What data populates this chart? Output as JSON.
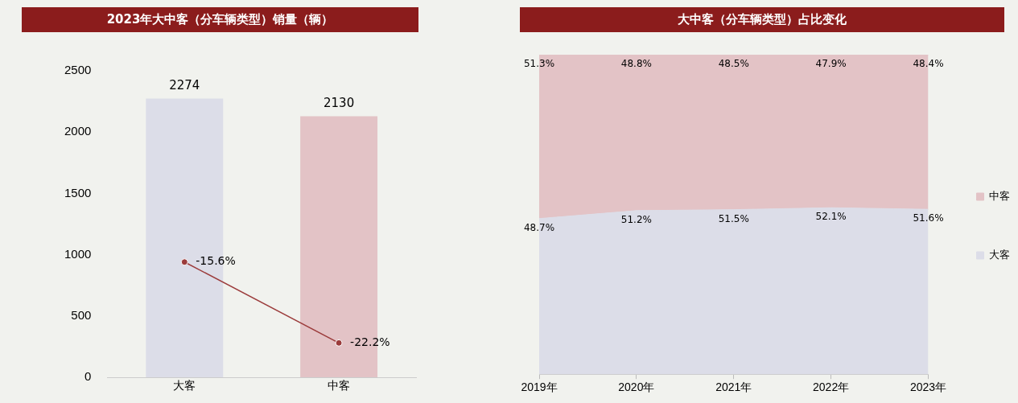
{
  "chart_data": [
    {
      "type": "bar",
      "title": "2023年大中客（分车辆类型）销量（辆）",
      "categories": [
        "大客",
        "中客"
      ],
      "series": [
        {
          "values": [
            2274,
            2130
          ],
          "colors": [
            "#dcdde8",
            "#e3c3c6"
          ],
          "value_labels": [
            "2274",
            "2130"
          ]
        },
        {
          "type": "line",
          "axis": "y2",
          "color": "#9b3b3b",
          "marker": "circle",
          "line_style": "solid",
          "values": [
            -15.6,
            -22.2
          ],
          "value_labels": [
            "-15.6%",
            "-22.2%"
          ]
        }
      ],
      "ylim": [
        0,
        2500
      ],
      "yticks": [
        0,
        500,
        1000,
        1500,
        2000,
        2500
      ],
      "y2lim": [
        -25,
        0
      ],
      "grid": false
    },
    {
      "type": "area",
      "title": "大中客（分车辆类型）占比变化",
      "categories": [
        "2019年",
        "2020年",
        "2021年",
        "2022年",
        "2023年"
      ],
      "stacked": true,
      "series": [
        {
          "name": "大客",
          "color": "#dcdde8",
          "values": [
            48.7,
            51.2,
            51.5,
            52.1,
            51.6
          ],
          "value_labels": [
            "48.7%",
            "51.2%",
            "51.5%",
            "52.1%",
            "51.6%"
          ]
        },
        {
          "name": "中客",
          "color": "#e3c3c6",
          "values": [
            51.3,
            48.8,
            48.5,
            47.9,
            48.4
          ],
          "value_labels": [
            "51.3%",
            "48.8%",
            "48.5%",
            "47.9%",
            "48.4%"
          ]
        }
      ],
      "ylim": [
        0,
        100
      ],
      "tick_labels": "x",
      "grid": false,
      "legend": "right"
    }
  ]
}
